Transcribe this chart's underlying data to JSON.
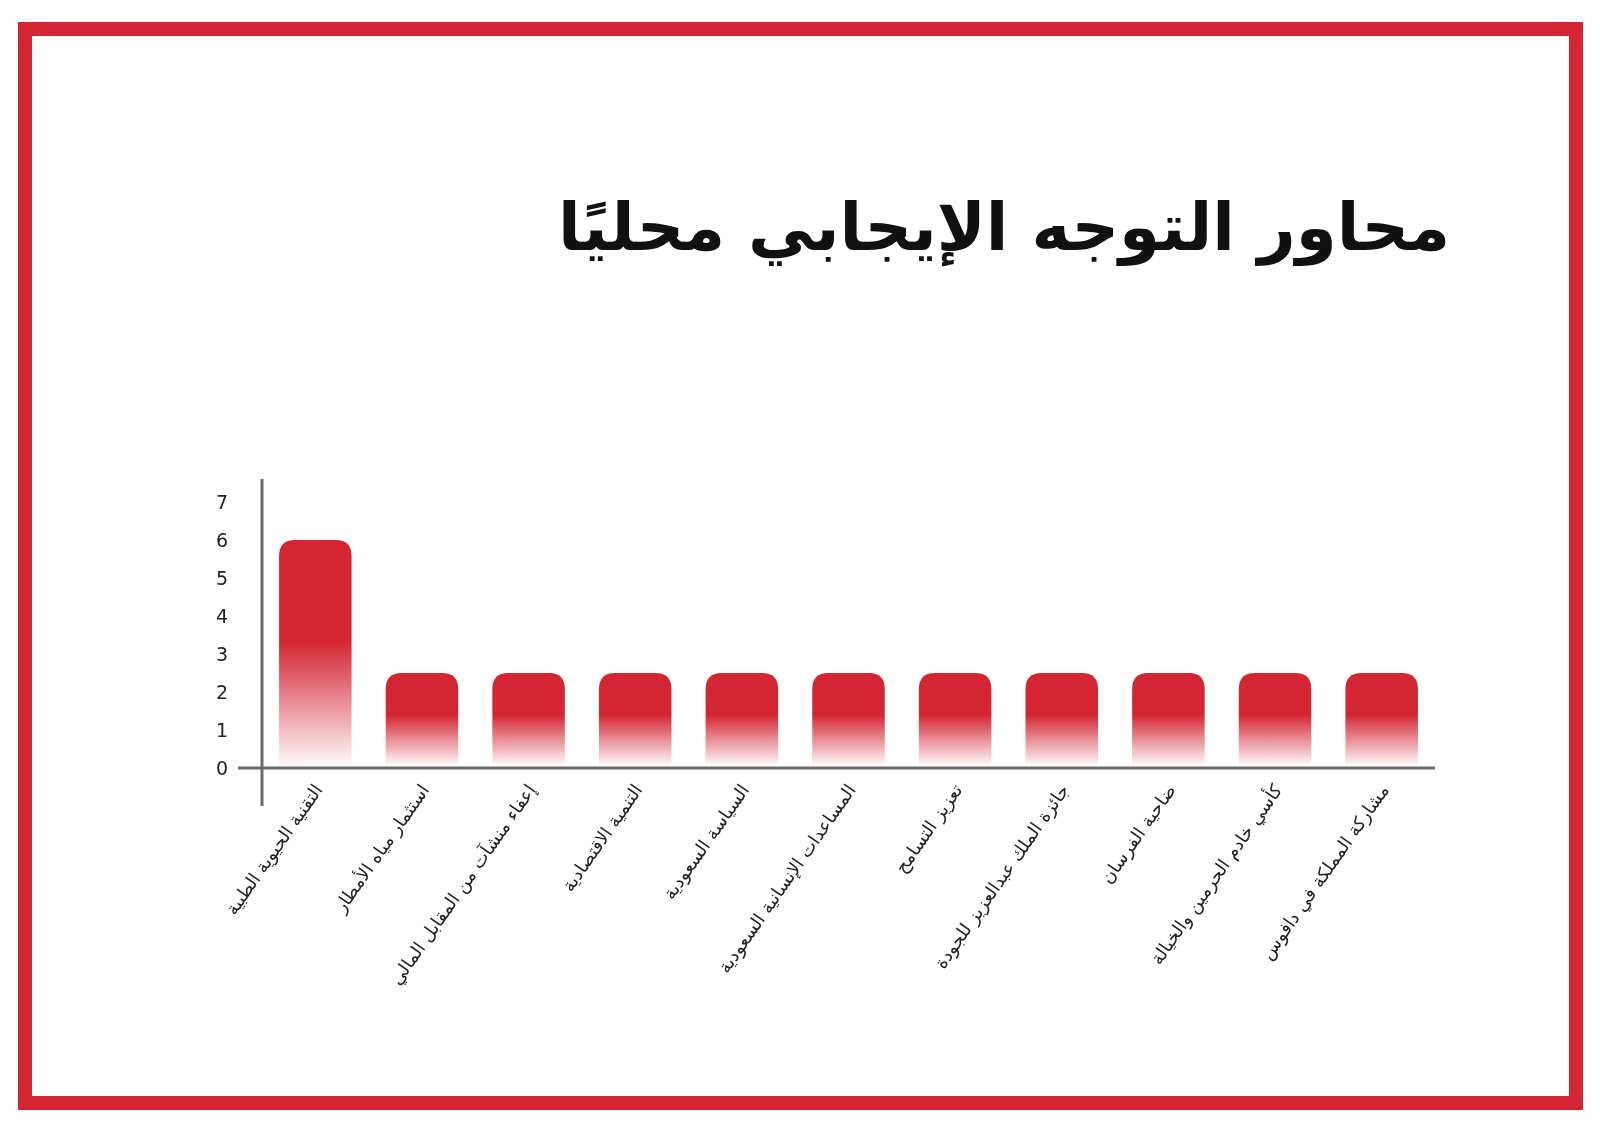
{
  "chart_data": {
    "type": "bar",
    "title": "محاور التوجه الإيجابي محليًا",
    "categories": [
      "التقنية الحيوية الطبية",
      "استثمار مياه الأمطار",
      "إعفاء منشآت من المقابل المالي",
      "التنمية الاقتصادية",
      "السياسة السعودية",
      "المساعدات الإنسانية السعودية",
      "تعزيز التسامح",
      "جائزة الملك عبدالعزيز للجودة",
      "ضاحية الفرسان",
      "كأسي خادم الحرمين والخيالة",
      "مشاركة المملكة في دافوس"
    ],
    "values": [
      6,
      2.5,
      2.5,
      2.5,
      2.5,
      2.5,
      2.5,
      2.5,
      2.5,
      2.5,
      2.5
    ],
    "color": "#d42532",
    "ylim": [
      0,
      7.5
    ],
    "yticks": [
      0,
      1,
      2,
      3,
      4,
      5,
      6,
      7
    ]
  }
}
